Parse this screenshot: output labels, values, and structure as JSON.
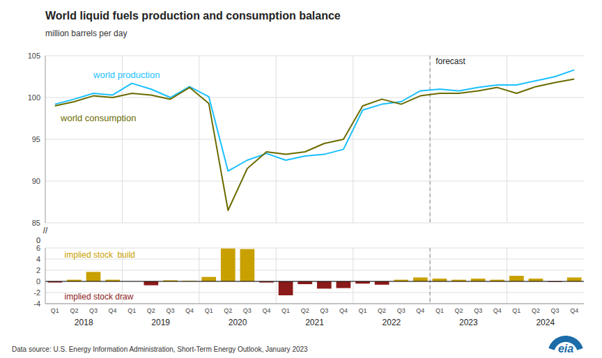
{
  "chart_data": [
    {
      "type": "line",
      "title": "World liquid fuels production and consumption balance",
      "ylabel": "million barrels per day",
      "categories": [
        "Q1",
        "Q2",
        "Q3",
        "Q4",
        "Q1",
        "Q2",
        "Q3",
        "Q4",
        "Q1",
        "Q2",
        "Q3",
        "Q4",
        "Q1",
        "Q2",
        "Q3",
        "Q4",
        "Q1",
        "Q2",
        "Q3",
        "Q4",
        "Q1",
        "Q2",
        "Q3",
        "Q4",
        "Q1",
        "Q2",
        "Q3",
        "Q4"
      ],
      "series": [
        {
          "name": "world production",
          "color": "#1ABFFF",
          "values": [
            99.2,
            99.8,
            100.5,
            100.3,
            101.7,
            101.0,
            100.0,
            101.3,
            100.1,
            91.2,
            92.5,
            93.3,
            92.5,
            93.0,
            93.2,
            93.8,
            98.5,
            99.2,
            99.5,
            100.8,
            101.0,
            100.8,
            101.2,
            101.5,
            101.5,
            102.0,
            102.5,
            103.3
          ]
        },
        {
          "name": "world consumption",
          "color": "#6B6B00",
          "values": [
            99.0,
            99.5,
            100.2,
            100.0,
            100.5,
            100.3,
            99.8,
            101.2,
            99.3,
            86.5,
            91.5,
            93.5,
            93.2,
            93.5,
            94.5,
            95.0,
            99.0,
            99.8,
            99.2,
            100.2,
            100.5,
            100.5,
            100.8,
            101.2,
            100.5,
            101.3,
            101.8,
            102.2
          ]
        }
      ],
      "ylim": [
        85,
        105
      ],
      "yticks": [
        85,
        90,
        95,
        100,
        105
      ],
      "grid": true,
      "tick_labels": "y",
      "forecast_start_index": 20,
      "annotations": [
        "forecast",
        "//",
        "0"
      ]
    },
    {
      "type": "bar",
      "categories": [
        "Q1",
        "Q2",
        "Q3",
        "Q4",
        "Q1",
        "Q2",
        "Q3",
        "Q4",
        "Q1",
        "Q2",
        "Q3",
        "Q4",
        "Q1",
        "Q2",
        "Q3",
        "Q4",
        "Q1",
        "Q2",
        "Q3",
        "Q4",
        "Q1",
        "Q2",
        "Q3",
        "Q4",
        "Q1",
        "Q2",
        "Q3",
        "Q4"
      ],
      "year_labels": [
        "2018",
        "2019",
        "2020",
        "2021",
        "2022",
        "2023",
        "2024"
      ],
      "values": [
        -0.2,
        0.3,
        1.7,
        0.3,
        0.0,
        -0.7,
        0.2,
        0.1,
        0.8,
        5.9,
        5.8,
        -0.2,
        -2.5,
        -0.5,
        -1.3,
        -1.2,
        -0.4,
        -0.6,
        0.3,
        0.7,
        0.5,
        0.3,
        0.5,
        0.3,
        1.0,
        0.5,
        -0.1,
        0.7
      ],
      "colors": [
        "#8B1A1A",
        "#C8A000",
        "#C8A000",
        "#C8A000",
        "#C8A000",
        "#8B1A1A",
        "#C8A000",
        "#C8A000",
        "#C8A000",
        "#C8A000",
        "#C8A000",
        "#8B1A1A",
        "#8B1A1A",
        "#8B1A1A",
        "#8B1A1A",
        "#8B1A1A",
        "#8B1A1A",
        "#8B1A1A",
        "#C8A000",
        "#C8A000",
        "#C8A000",
        "#C8A000",
        "#C8A000",
        "#C8A000",
        "#C8A000",
        "#C8A000",
        "#8B1A1A",
        "#C8A000"
      ],
      "ylim": [
        -4,
        6
      ],
      "yticks": [
        -4,
        -2,
        0,
        2,
        4,
        6
      ],
      "grid": true,
      "annotations": [
        {
          "text": "implied stock  build",
          "color": "#C8A000"
        },
        {
          "text": "implied stock draw",
          "color": "#8B1A1A"
        }
      ],
      "source": "Data source: U.S. Energy Information Administration, Short-Term Energy Outlook, January 2023",
      "logo": "eia"
    }
  ]
}
